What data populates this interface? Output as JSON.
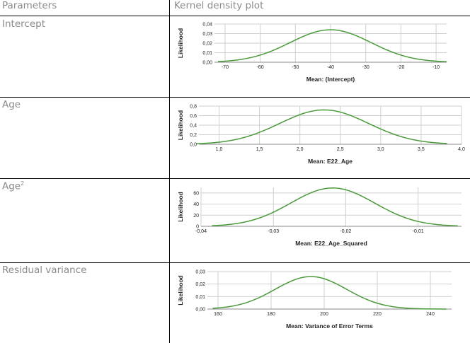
{
  "header": {
    "col1": "Parameters",
    "col2": "Kernel density plot"
  },
  "rows": [
    {
      "label": "Intercept"
    },
    {
      "label": "Age"
    },
    {
      "label_base": "Age",
      "label_sup": "2"
    },
    {
      "label": "Residual variance"
    }
  ],
  "colors": {
    "curve": "#4a9a3a",
    "grid": "#cfcfcf",
    "border": "#000000",
    "label": "#8a8a8a"
  },
  "chart_data": [
    {
      "type": "area",
      "title": "",
      "xlabel": "Mean: (Intercept)",
      "ylabel": "Likelihood",
      "xlim": [
        -73,
        -7
      ],
      "ylim": [
        0,
        0.04
      ],
      "grid": true,
      "xticks": [
        "-70",
        "-60",
        "-50",
        "-40",
        "-30",
        "-20",
        "-10"
      ],
      "yticks": [
        "0,00",
        "0,01",
        "0,02",
        "0,03",
        "0,04"
      ],
      "density": {
        "mean": -40,
        "sd": 11.5,
        "peak": 0.034,
        "range": [
          -72,
          -7
        ]
      }
    },
    {
      "type": "area",
      "title": "",
      "xlabel": "Mean: E22_Age",
      "ylabel": "Likelihood",
      "xlim": [
        0.75,
        4.0
      ],
      "ylim": [
        0,
        0.8
      ],
      "grid": true,
      "xticks": [
        "1,0",
        "1,5",
        "2,0",
        "2,5",
        "3,0",
        "3,5",
        "4,0"
      ],
      "yticks": [
        "0,0",
        "0,2",
        "0,4",
        "0,6",
        "0,8"
      ],
      "density": {
        "mean": 2.3,
        "sd": 0.55,
        "peak": 0.72,
        "range": [
          0.72,
          3.82
        ]
      }
    },
    {
      "type": "area",
      "title": "",
      "xlabel": "Mean: E22_Age_Squared",
      "ylabel": "Likelihood",
      "xlim": [
        -0.04,
        -0.004
      ],
      "ylim": [
        0,
        70
      ],
      "grid": true,
      "xticks": [
        "-0,04",
        "-0,03",
        "-0,02",
        "-0,01"
      ],
      "yticks": [
        "0",
        "20",
        "40",
        "60"
      ],
      "density": {
        "mean": -0.0218,
        "sd": 0.0058,
        "peak": 69,
        "range": [
          -0.0385,
          -0.0045
        ]
      }
    },
    {
      "type": "area",
      "title": "",
      "xlabel": "Mean: Variance of Error Terms",
      "ylabel": "Likelihood",
      "xlim": [
        156,
        248
      ],
      "ylim": [
        0,
        0.03
      ],
      "grid": true,
      "xticks": [
        "160",
        "180",
        "200",
        "220",
        "240"
      ],
      "yticks": [
        "0,00",
        "0,01",
        "0,02",
        "0,03"
      ],
      "density": {
        "mean": 195,
        "sd": 13.5,
        "peak": 0.026,
        "range": [
          158,
          246
        ]
      }
    }
  ]
}
